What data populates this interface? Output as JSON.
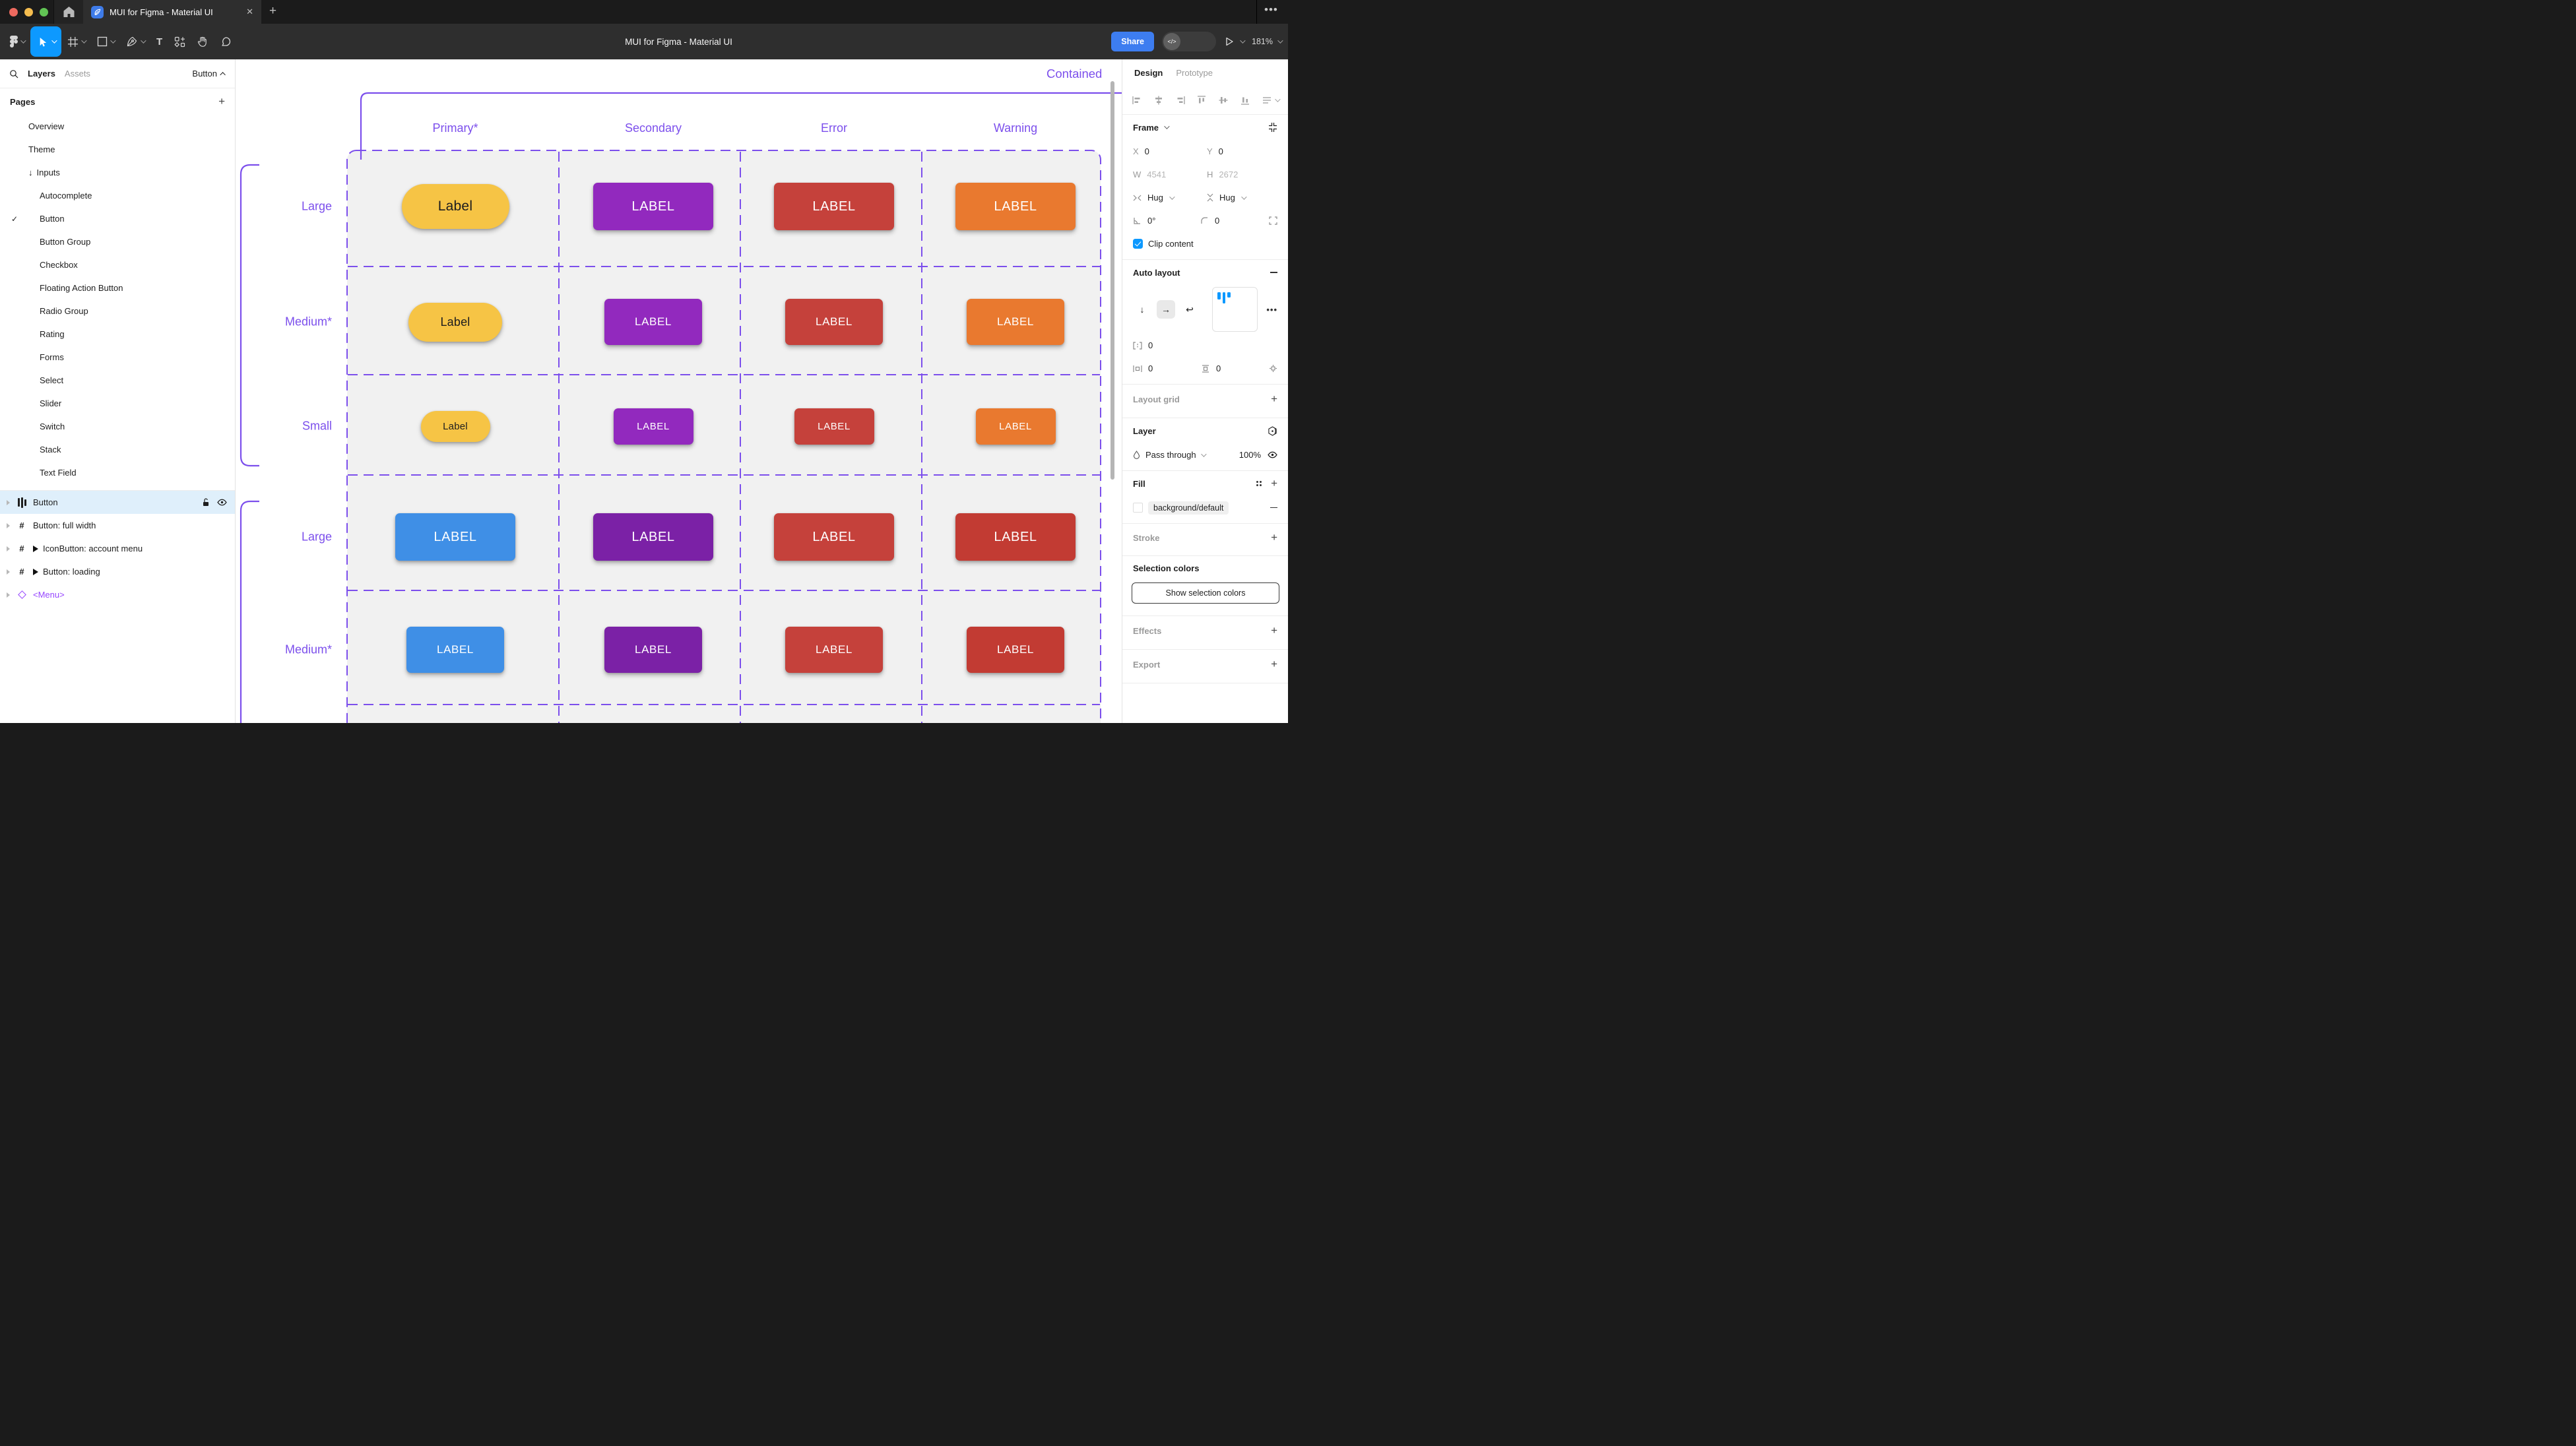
{
  "window": {
    "tab_title": "MUI for Figma - Material UI",
    "doc_title": "MUI for Figma - Material UI",
    "share_label": "Share",
    "zoom_level": "181%"
  },
  "colors": {
    "accent_purple": "#7C4FEC",
    "figma_blue": "#0D99FF",
    "share_blue": "#3D7DF0",
    "selected_row": "#DFEFFB",
    "traffic": [
      "#EE6A5F",
      "#F5BD4F",
      "#61C454"
    ]
  },
  "left_sidebar": {
    "tab_layers": "Layers",
    "tab_assets": "Assets",
    "page_selector": "Button",
    "pages_header": "Pages",
    "pages": [
      {
        "label": "Overview",
        "level": 1
      },
      {
        "label": "Theme",
        "level": 1
      },
      {
        "label": "Inputs",
        "level": 1,
        "arrow": "↓"
      },
      {
        "label": "Autocomplete",
        "level": 2
      },
      {
        "label": "Button",
        "level": 2,
        "checked": true
      },
      {
        "label": "Button Group",
        "level": 2
      },
      {
        "label": "Checkbox",
        "level": 2
      },
      {
        "label": "Floating Action Button",
        "level": 2
      },
      {
        "label": "Radio Group",
        "level": 2
      },
      {
        "label": "Rating",
        "level": 2
      },
      {
        "label": "Forms",
        "level": 2
      },
      {
        "label": "Select",
        "level": 2
      },
      {
        "label": "Slider",
        "level": 2
      },
      {
        "label": "Switch",
        "level": 2
      },
      {
        "label": "Stack",
        "level": 2
      },
      {
        "label": "Text Field",
        "level": 2
      }
    ],
    "layers": [
      {
        "label": "Button",
        "icon": "auto-layout",
        "selected": true
      },
      {
        "label": "Button: full width",
        "icon": "frame"
      },
      {
        "label": "IconButton: account menu",
        "icon": "frame",
        "play": true
      },
      {
        "label": "Button: loading",
        "icon": "frame",
        "play": true
      },
      {
        "label": "<Menu>",
        "icon": "instance",
        "instance": true
      }
    ]
  },
  "canvas": {
    "frame_title": "Contained",
    "columns": [
      "Primary*",
      "Secondary",
      "Error",
      "Warning"
    ],
    "row_labels": [
      "Large",
      "Medium*",
      "Small",
      "Large",
      "Medium*"
    ],
    "button_rows": [
      {
        "size": "lg",
        "cells": [
          {
            "text": "Label",
            "bg": "#F6C445",
            "fg": "#1C1C1E",
            "pill": true
          },
          {
            "text": "LABEL",
            "bg": "#9229BE",
            "fg": "#FFFFFF"
          },
          {
            "text": "LABEL",
            "bg": "#C5413B",
            "fg": "#FFFFFF"
          },
          {
            "text": "LABEL",
            "bg": "#E9792F",
            "fg": "#FFFFFF"
          }
        ]
      },
      {
        "size": "md",
        "cells": [
          {
            "text": "Label",
            "bg": "#F6C445",
            "fg": "#1C1C1E",
            "pill": true
          },
          {
            "text": "LABEL",
            "bg": "#9229BE",
            "fg": "#FFFFFF"
          },
          {
            "text": "LABEL",
            "bg": "#C5413B",
            "fg": "#FFFFFF"
          },
          {
            "text": "LABEL",
            "bg": "#E9792F",
            "fg": "#FFFFFF"
          }
        ]
      },
      {
        "size": "sm",
        "cells": [
          {
            "text": "Label",
            "bg": "#F6C445",
            "fg": "#1C1C1E",
            "pill": true
          },
          {
            "text": "LABEL",
            "bg": "#9229BE",
            "fg": "#FFFFFF"
          },
          {
            "text": "LABEL",
            "bg": "#C5413B",
            "fg": "#FFFFFF"
          },
          {
            "text": "LABEL",
            "bg": "#E9792F",
            "fg": "#FFFFFF"
          }
        ]
      },
      {
        "size": "lg",
        "cells": [
          {
            "text": "LABEL",
            "bg": "#3F8FE6",
            "fg": "#FFFFFF"
          },
          {
            "text": "LABEL",
            "bg": "#7B21A6",
            "fg": "#FFFFFF"
          },
          {
            "text": "LABEL",
            "bg": "#C5413B",
            "fg": "#FFFFFF"
          },
          {
            "text": "LABEL",
            "bg": "#C23B33",
            "fg": "#FFFFFF"
          }
        ]
      },
      {
        "size": "md",
        "cells": [
          {
            "text": "LABEL",
            "bg": "#3F8FE6",
            "fg": "#FFFFFF"
          },
          {
            "text": "LABEL",
            "bg": "#7B21A6",
            "fg": "#FFFFFF"
          },
          {
            "text": "LABEL",
            "bg": "#C5413B",
            "fg": "#FFFFFF"
          },
          {
            "text": "LABEL",
            "bg": "#C23B33",
            "fg": "#FFFFFF"
          }
        ]
      }
    ]
  },
  "right_panel": {
    "tab_design": "Design",
    "tab_prototype": "Prototype",
    "frame_section": {
      "title": "Frame",
      "x_label": "X",
      "x_value": "0",
      "y_label": "Y",
      "y_value": "0",
      "w_label": "W",
      "w_value": "4541",
      "h_label": "H",
      "h_value": "2672",
      "hug_h": "Hug",
      "hug_v": "Hug",
      "rotation_value": "0°",
      "radius_value": "0",
      "clip_label": "Clip content"
    },
    "auto_layout": {
      "title": "Auto layout",
      "gap_value": "0",
      "pad_h_value": "0",
      "pad_v_value": "0"
    },
    "layout_grid_title": "Layout grid",
    "layer_section": {
      "title": "Layer",
      "blend_mode": "Pass through",
      "opacity": "100%"
    },
    "fill_section": {
      "title": "Fill",
      "style_name": "background/default"
    },
    "stroke_title": "Stroke",
    "selection_colors_title": "Selection colors",
    "show_selection_colors_label": "Show selection colors",
    "effects_title": "Effects",
    "export_title": "Export"
  }
}
